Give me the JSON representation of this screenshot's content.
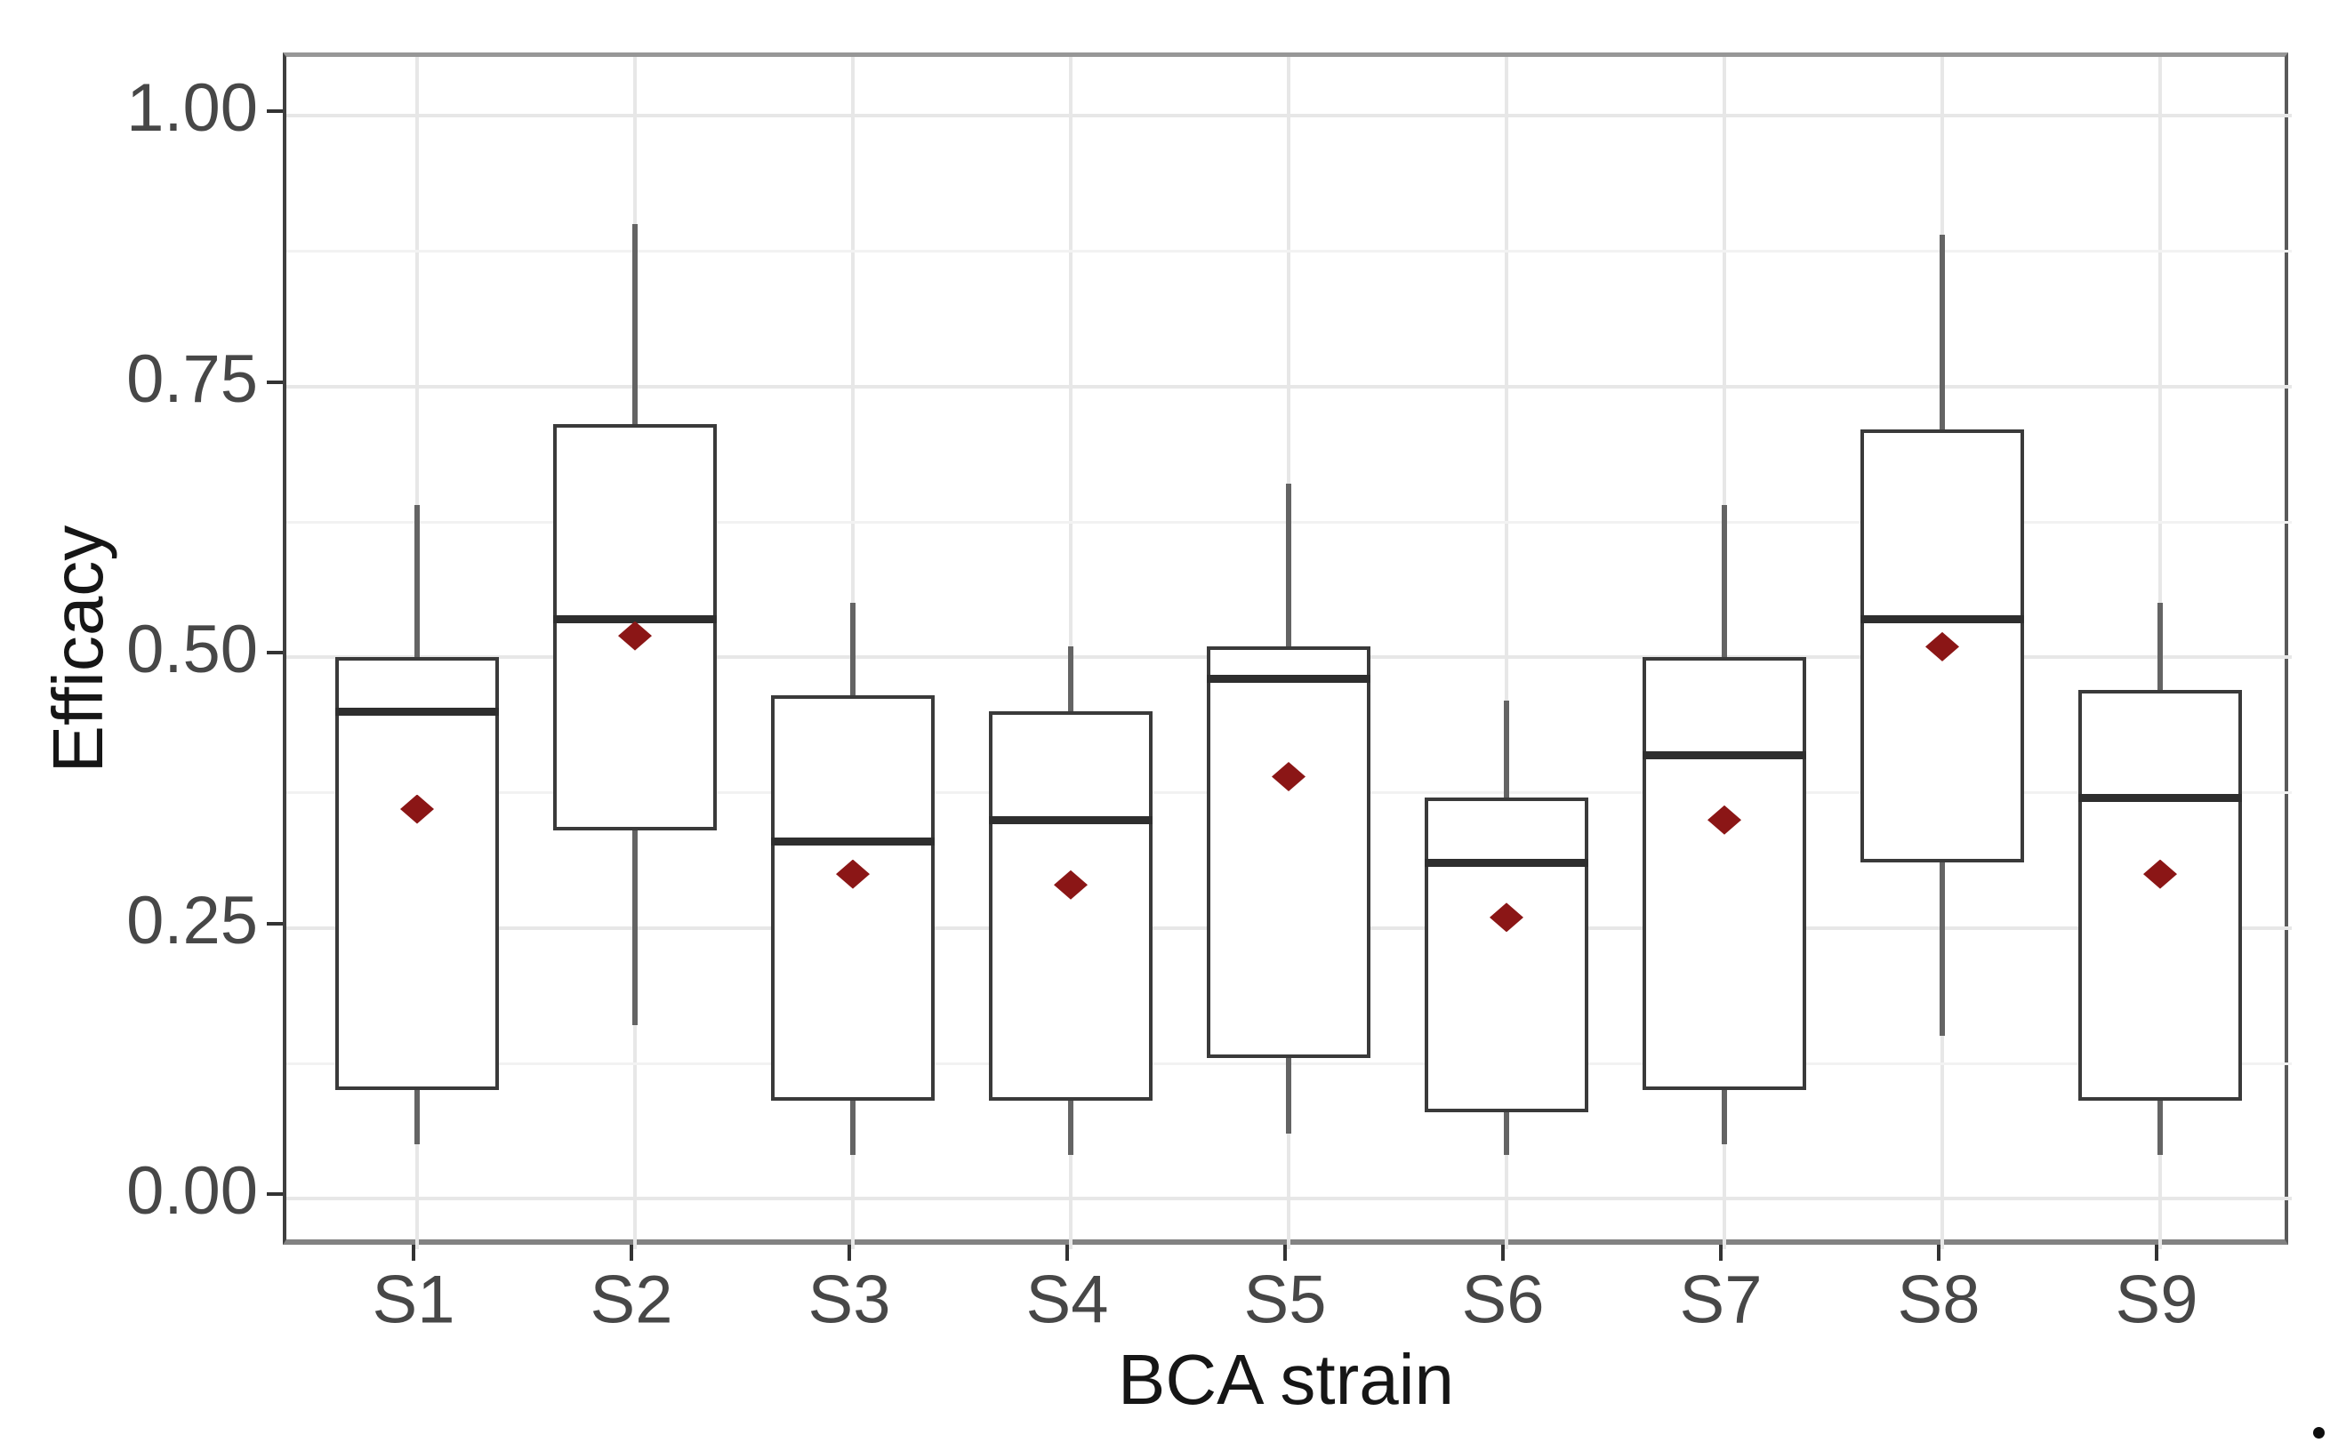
{
  "figure": {
    "background": "#ffffff"
  },
  "chart_data": {
    "type": "boxplot",
    "orientation": "vertical",
    "title": "",
    "xlabel": "BCA strain",
    "ylabel": "Efficacy",
    "categories": [
      "S1",
      "S2",
      "S3",
      "S4",
      "S5",
      "S6",
      "S7",
      "S8",
      "S9"
    ],
    "yticks": [
      0.0,
      0.25,
      0.5,
      0.75,
      1.0
    ],
    "ytick_labels": [
      "0.00",
      "0.25",
      "0.50",
      "0.75",
      "1.00"
    ],
    "yminor_gridlines": [
      0.125,
      0.375,
      0.625,
      0.875
    ],
    "ylim": [
      -0.05,
      1.05
    ],
    "grid": {
      "horizontal": "major and minor",
      "vertical": "major at each category",
      "legend_position": "none"
    },
    "mean_marker": "filled diamond",
    "series": [
      {
        "category": "S1",
        "whisker_low": 0.05,
        "q1": 0.1,
        "median": 0.45,
        "q3": 0.5,
        "whisker_high": 0.64,
        "mean": 0.36
      },
      {
        "category": "S2",
        "whisker_low": 0.16,
        "q1": 0.34,
        "median": 0.535,
        "q3": 0.715,
        "whisker_high": 0.9,
        "mean": 0.52
      },
      {
        "category": "S3",
        "whisker_low": 0.04,
        "q1": 0.09,
        "median": 0.33,
        "q3": 0.465,
        "whisker_high": 0.55,
        "mean": 0.3
      },
      {
        "category": "S4",
        "whisker_low": 0.04,
        "q1": 0.09,
        "median": 0.35,
        "q3": 0.45,
        "whisker_high": 0.51,
        "mean": 0.29
      },
      {
        "category": "S5",
        "whisker_low": 0.06,
        "q1": 0.13,
        "median": 0.48,
        "q3": 0.51,
        "whisker_high": 0.66,
        "mean": 0.39
      },
      {
        "category": "S6",
        "whisker_low": 0.04,
        "q1": 0.08,
        "median": 0.31,
        "q3": 0.37,
        "whisker_high": 0.46,
        "mean": 0.26
      },
      {
        "category": "S7",
        "whisker_low": 0.05,
        "q1": 0.1,
        "median": 0.41,
        "q3": 0.5,
        "whisker_high": 0.64,
        "mean": 0.35
      },
      {
        "category": "S8",
        "whisker_low": 0.15,
        "q1": 0.31,
        "median": 0.535,
        "q3": 0.71,
        "whisker_high": 0.89,
        "mean": 0.51
      },
      {
        "category": "S9",
        "whisker_low": 0.04,
        "q1": 0.09,
        "median": 0.37,
        "q3": 0.47,
        "whisker_high": 0.55,
        "mean": 0.3
      }
    ]
  },
  "colors": {
    "background": "#ffffff",
    "grid_major": "#e7e7e7",
    "grid_minor": "#f2f2f2",
    "box_border": "#3a3a3a",
    "box_fill": "#ffffff",
    "median_line": "#2e2e2e",
    "whisker": "#646464",
    "mean_diamond": "#8b1616",
    "tick_mark": "#333333",
    "tick_label": "#474747",
    "axis_title": "#161616"
  },
  "annotations": {
    "bottom_right_period_dot": true
  }
}
